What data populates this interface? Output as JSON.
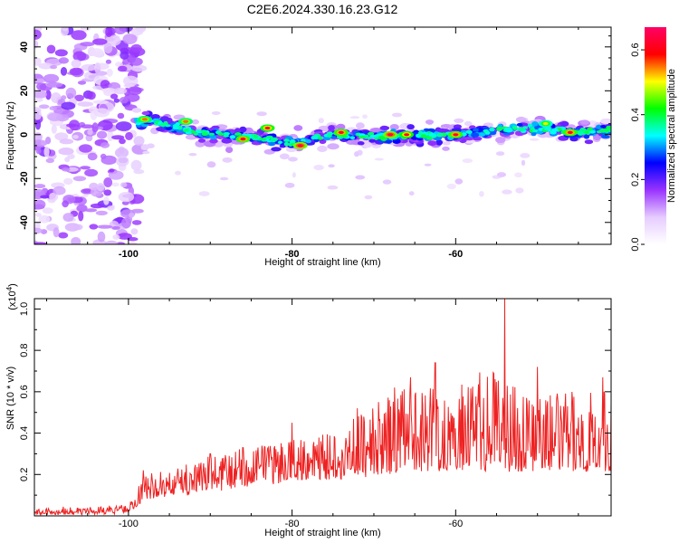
{
  "title": "C2E6.2024.330.16.23.G12",
  "chart_data": [
    {
      "type": "heatmap",
      "xlabel": "Height of straight line (km)",
      "ylabel": "Frequency (Hz)",
      "xlim": [
        -111.5,
        -41
      ],
      "ylim": [
        -50,
        49
      ],
      "x_ticks": [
        -100,
        -80,
        -60
      ],
      "y_ticks": [
        -40,
        -20,
        0,
        20,
        40
      ],
      "colorbar": {
        "label": "Normalized spectral amplitude",
        "range": [
          0,
          0.67
        ],
        "ticks": [
          "0.0",
          "0.2",
          "0.4",
          "0.6"
        ],
        "colormap": [
          "#ffffff",
          "#e6ccff",
          "#9933ff",
          "#0000ff",
          "#00ffff",
          "#00ff00",
          "#ffff00",
          "#ff0000",
          "#ff0066"
        ]
      },
      "ridge": {
        "x": [
          -97,
          -95,
          -90,
          -85,
          -80,
          -75,
          -70,
          -65,
          -60,
          -55,
          -50,
          -45,
          -41
        ],
        "frequency": [
          6,
          4,
          0,
          -1,
          -4,
          0,
          -1,
          0,
          0,
          2,
          3,
          1,
          2
        ]
      },
      "hotspots": [
        {
          "x": -98,
          "y": 7,
          "amp": 0.55
        },
        {
          "x": -93,
          "y": 6,
          "amp": 0.55
        },
        {
          "x": -86,
          "y": -2,
          "amp": 0.62
        },
        {
          "x": -83,
          "y": 3,
          "amp": 0.6
        },
        {
          "x": -79,
          "y": -5,
          "amp": 0.65
        },
        {
          "x": -74,
          "y": 1,
          "amp": 0.62
        },
        {
          "x": -68,
          "y": 0,
          "amp": 0.65
        },
        {
          "x": -66,
          "y": 0,
          "amp": 0.6
        },
        {
          "x": -60,
          "y": 0,
          "amp": 0.62
        },
        {
          "x": -49,
          "y": 5,
          "amp": 0.5
        },
        {
          "x": -46,
          "y": 1,
          "amp": 0.62
        }
      ]
    },
    {
      "type": "line",
      "xlabel": "Height of straight line (km)",
      "ylabel": "SNR (10 * v/v)",
      "y_scale_label": "(x10",
      "y_scale_exp": "4",
      "y_scale_close": ")",
      "xlim": [
        -111.5,
        -41
      ],
      "ylim": [
        0,
        1.05
      ],
      "x_ticks": [
        -100,
        -80,
        -60
      ],
      "y_ticks": [
        "0.2",
        "0.4",
        "0.6",
        "0.8",
        "1.0"
      ],
      "color": "#ee2222",
      "envelope": {
        "x": [
          -111.5,
          -100,
          -98,
          -95,
          -90,
          -85,
          -80,
          -75,
          -70,
          -65,
          -60,
          -55,
          -50,
          -45,
          -41
        ],
        "baseline": [
          0.0,
          0.02,
          0.08,
          0.1,
          0.12,
          0.15,
          0.17,
          0.18,
          0.2,
          0.22,
          0.22,
          0.22,
          0.22,
          0.22,
          0.2
        ],
        "peak": [
          0.03,
          0.05,
          0.2,
          0.22,
          0.3,
          0.33,
          0.38,
          0.42,
          0.55,
          0.65,
          0.65,
          0.72,
          0.6,
          0.6,
          0.62
        ]
      },
      "peaks": [
        {
          "x": -98.2,
          "y": 0.22
        },
        {
          "x": -90,
          "y": 0.3
        },
        {
          "x": -86,
          "y": 0.33
        },
        {
          "x": -80,
          "y": 0.45
        },
        {
          "x": -72,
          "y": 0.52
        },
        {
          "x": -67.5,
          "y": 0.62
        },
        {
          "x": -65.5,
          "y": 0.67
        },
        {
          "x": -62.5,
          "y": 0.74
        },
        {
          "x": -54,
          "y": 1.05
        },
        {
          "x": -50,
          "y": 0.72
        },
        {
          "x": -42,
          "y": 0.67
        }
      ]
    }
  ]
}
